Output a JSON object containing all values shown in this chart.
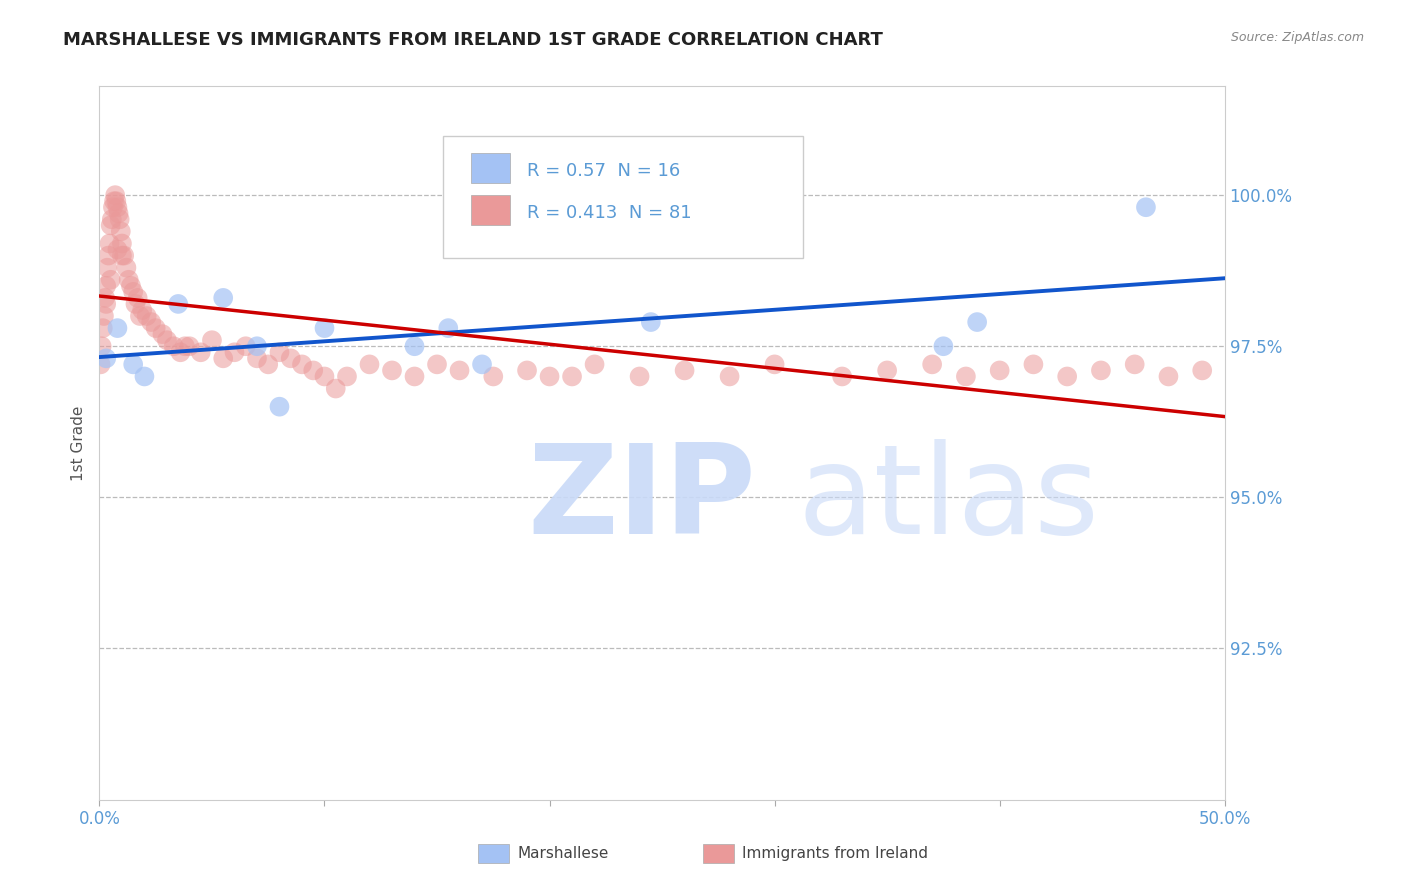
{
  "title": "MARSHALLESE VS IMMIGRANTS FROM IRELAND 1ST GRADE CORRELATION CHART",
  "source_text": "Source: ZipAtlas.com",
  "ylabel": "1st Grade",
  "xlim": [
    0.0,
    50.0
  ],
  "ylim": [
    90.0,
    101.8
  ],
  "yticks": [
    92.5,
    95.0,
    97.5,
    100.0
  ],
  "ytick_labels": [
    "92.5%",
    "95.0%",
    "97.5%",
    "100.0%"
  ],
  "xticks": [
    0.0,
    10.0,
    20.0,
    30.0,
    40.0,
    50.0
  ],
  "xtick_labels": [
    "0.0%",
    "",
    "",
    "",
    "",
    "50.0%"
  ],
  "blue_R": 0.57,
  "blue_N": 16,
  "pink_R": 0.413,
  "pink_N": 81,
  "blue_color": "#a4c2f4",
  "pink_color": "#ea9999",
  "blue_line_color": "#1155cc",
  "pink_line_color": "#cc0000",
  "tick_color": "#5b9bd5",
  "grid_color": "#bbbbbb",
  "title_color": "#222222",
  "source_color": "#888888",
  "legend_color": "#5b9bd5",
  "blue_x": [
    0.3,
    0.8,
    1.5,
    2.0,
    3.5,
    5.5,
    7.0,
    8.0,
    10.0,
    14.0,
    15.5,
    17.0,
    24.5,
    37.5,
    39.0,
    46.5
  ],
  "blue_y": [
    97.3,
    97.8,
    97.2,
    97.0,
    98.2,
    98.3,
    97.5,
    96.5,
    97.8,
    97.5,
    97.8,
    97.2,
    97.9,
    97.5,
    97.9,
    99.8
  ],
  "pink_x": [
    0.05,
    0.1,
    0.15,
    0.2,
    0.25,
    0.3,
    0.35,
    0.4,
    0.45,
    0.5,
    0.55,
    0.6,
    0.65,
    0.7,
    0.75,
    0.8,
    0.85,
    0.9,
    0.95,
    1.0,
    1.1,
    1.2,
    1.3,
    1.5,
    1.7,
    1.9,
    2.1,
    2.3,
    2.5,
    2.8,
    3.0,
    3.3,
    3.6,
    4.0,
    4.5,
    5.0,
    5.5,
    6.0,
    6.5,
    7.0,
    7.5,
    8.0,
    8.5,
    9.0,
    9.5,
    10.0,
    11.0,
    12.0,
    13.0,
    14.0,
    15.0,
    16.0,
    17.5,
    19.0,
    20.0,
    22.0,
    24.0,
    26.0,
    28.0,
    30.0,
    33.0,
    35.0,
    37.0,
    38.5,
    40.0,
    41.5,
    43.0,
    44.5,
    46.0,
    47.5,
    49.0,
    0.3,
    0.5,
    0.8,
    1.0,
    1.4,
    1.6,
    1.8,
    3.8,
    10.5,
    21.0
  ],
  "pink_y": [
    97.2,
    97.5,
    97.8,
    98.0,
    98.3,
    98.5,
    98.8,
    99.0,
    99.2,
    99.5,
    99.6,
    99.8,
    99.9,
    100.0,
    99.9,
    99.8,
    99.7,
    99.6,
    99.4,
    99.2,
    99.0,
    98.8,
    98.6,
    98.4,
    98.3,
    98.1,
    98.0,
    97.9,
    97.8,
    97.7,
    97.6,
    97.5,
    97.4,
    97.5,
    97.4,
    97.6,
    97.3,
    97.4,
    97.5,
    97.3,
    97.2,
    97.4,
    97.3,
    97.2,
    97.1,
    97.0,
    97.0,
    97.2,
    97.1,
    97.0,
    97.2,
    97.1,
    97.0,
    97.1,
    97.0,
    97.2,
    97.0,
    97.1,
    97.0,
    97.2,
    97.0,
    97.1,
    97.2,
    97.0,
    97.1,
    97.2,
    97.0,
    97.1,
    97.2,
    97.0,
    97.1,
    98.2,
    98.6,
    99.1,
    99.0,
    98.5,
    98.2,
    98.0,
    97.5,
    96.8,
    97.0
  ],
  "watermark_zip_color": "#c9daf8",
  "watermark_atlas_color": "#c9daf8"
}
